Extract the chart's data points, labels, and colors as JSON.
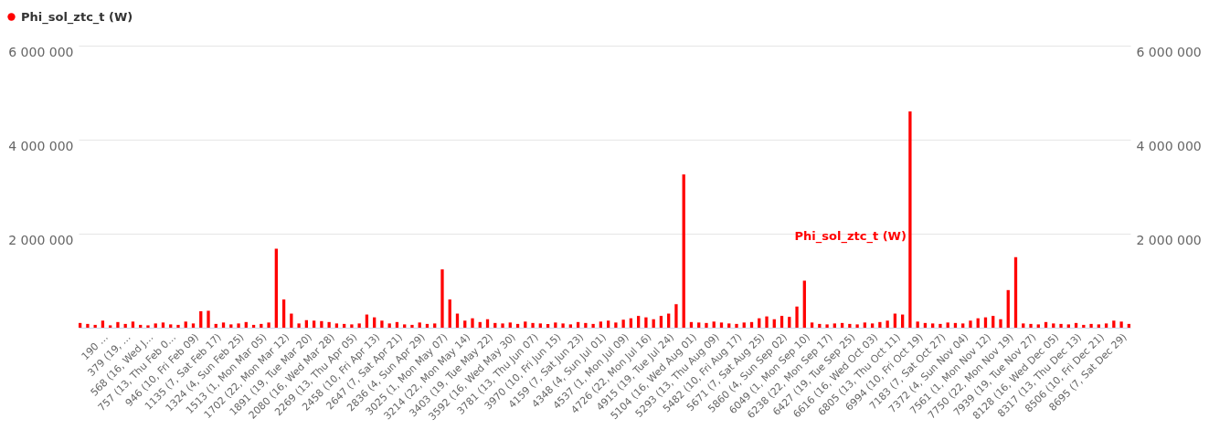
{
  "chart_data": {
    "type": "bar",
    "categories": [
      null,
      null,
      null,
      "190 …",
      null,
      null,
      "379 (19, …",
      null,
      null,
      "568 (16, Wed J…",
      null,
      null,
      "757 (13, Thu Feb 0…",
      null,
      null,
      "946 (10, Fri Feb 09)",
      null,
      null,
      "1135 (7, Sat Feb 17)",
      null,
      null,
      "1324 (4, Sun Feb 25)",
      null,
      null,
      "1513 (1, Mon Mar 05)",
      null,
      null,
      "1702 (22, Mon Mar 12)",
      null,
      null,
      "1891 (19, Tue Mar 20)",
      null,
      null,
      "2080 (16, Wed Mar 28)",
      null,
      null,
      "2269 (13, Thu Apr 05)",
      null,
      null,
      "2458 (10, Fri Apr 13)",
      null,
      null,
      "2647 (7, Sat Apr 21)",
      null,
      null,
      "2836 (4, Sun Apr 29)",
      null,
      null,
      "3025 (1, Mon May 07)",
      null,
      null,
      "3214 (22, Mon May 14)",
      null,
      null,
      "3403 (19, Tue May 22)",
      null,
      null,
      "3592 (16, Wed May 30)",
      null,
      null,
      "3781 (13, Thu Jun 07)",
      null,
      null,
      "3970 (10, Fri Jun 15)",
      null,
      null,
      "4159 (7, Sat Jun 23)",
      null,
      null,
      "4348 (4, Sun Jul 01)",
      null,
      null,
      "4537 (1, Mon Jul 09)",
      null,
      null,
      "4726 (22, Mon Jul 16)",
      null,
      null,
      "4915 (19, Tue Jul 24)",
      null,
      null,
      "5104 (16, Wed Aug 01)",
      null,
      null,
      "5293 (13, Thu Aug 09)",
      null,
      null,
      "5482 (10, Fri Aug 17)",
      null,
      null,
      "5671 (7, Sat Aug 25)",
      null,
      null,
      "5860 (4, Sun Sep 02)",
      null,
      null,
      "6049 (1, Mon Sep 10)",
      null,
      null,
      "6238 (22, Mon Sep 17)",
      null,
      null,
      "6427 (19, Tue Sep 25)",
      null,
      null,
      "6616 (16, Wed Oct 03)",
      null,
      null,
      "6805 (13, Thu Oct 11)",
      null,
      null,
      "6994 (10, Fri Oct 19)",
      null,
      null,
      "7183 (7, Sat Oct 27)",
      null,
      null,
      "7372 (4, Sun Nov 04)",
      null,
      null,
      "7561 (1, Mon Nov 12)",
      null,
      null,
      "7750 (22, Mon Nov 19)",
      null,
      null,
      "7939 (19, Tue Nov 27)",
      null,
      null,
      "8128 (16, Wed Dec 05)",
      null,
      null,
      "8317 (13, Thu Dec 13)",
      null,
      null,
      "8506 (10, Fri Dec 21)",
      null,
      null,
      "8695 (7, Sat Dec 29)",
      null
    ],
    "series": [
      {
        "name": "Phi_sol_ztc_t (W)",
        "color": "#ff0000",
        "values": [
          100000,
          80000,
          60000,
          150000,
          50000,
          120000,
          80000,
          130000,
          60000,
          50000,
          90000,
          110000,
          70000,
          60000,
          130000,
          90000,
          350000,
          360000,
          80000,
          110000,
          70000,
          90000,
          120000,
          60000,
          80000,
          110000,
          1680000,
          600000,
          300000,
          90000,
          160000,
          150000,
          140000,
          120000,
          90000,
          80000,
          70000,
          90000,
          280000,
          220000,
          150000,
          90000,
          120000,
          70000,
          60000,
          110000,
          80000,
          90000,
          1240000,
          600000,
          300000,
          150000,
          200000,
          120000,
          180000,
          100000,
          90000,
          110000,
          80000,
          130000,
          100000,
          90000,
          80000,
          110000,
          90000,
          70000,
          120000,
          100000,
          80000,
          130000,
          150000,
          110000,
          170000,
          200000,
          250000,
          220000,
          180000,
          250000,
          300000,
          500000,
          3260000,
          120000,
          110000,
          100000,
          130000,
          110000,
          90000,
          80000,
          110000,
          120000,
          200000,
          240000,
          180000,
          250000,
          230000,
          450000,
          1000000,
          110000,
          80000,
          70000,
          90000,
          100000,
          80000,
          70000,
          110000,
          90000,
          120000,
          150000,
          300000,
          280000,
          4600000,
          130000,
          100000,
          90000,
          80000,
          110000,
          100000,
          90000,
          150000,
          200000,
          220000,
          250000,
          180000,
          800000,
          1500000,
          90000,
          80000,
          70000,
          120000,
          90000,
          80000,
          70000,
          100000,
          60000,
          80000,
          70000,
          90000,
          150000,
          130000,
          80000
        ]
      }
    ],
    "ylim": [
      0,
      6000000
    ],
    "yticks": [
      {
        "value": 2000000,
        "label": "2 000 000"
      },
      {
        "value": 4000000,
        "label": "4 000 000"
      },
      {
        "value": 6000000,
        "label": "6 000 000"
      }
    ],
    "y2lim": [
      0,
      6000000
    ],
    "y2ticks": [
      {
        "value": 2000000,
        "label": "2 000 000"
      },
      {
        "value": 4000000,
        "label": "4 000 000"
      },
      {
        "value": 6000000,
        "label": "6 000 000"
      }
    ],
    "grid": "y",
    "legend": "top left"
  }
}
